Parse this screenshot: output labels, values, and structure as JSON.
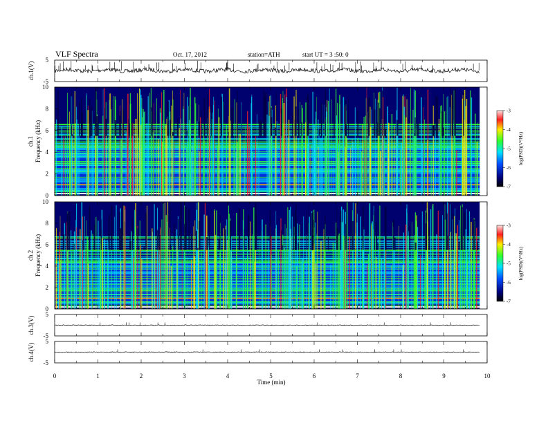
{
  "header": {
    "title": "VLF Spectra",
    "date": "Oct. 17, 2012",
    "station": "station=ATH",
    "start": "start UT = 3 :50: 0"
  },
  "chart_data": {
    "type": "heatmap",
    "xlabel": "Time (min)",
    "xlim": [
      0,
      10
    ],
    "xticks": [
      "0",
      "1",
      "2",
      "3",
      "4",
      "5",
      "6",
      "7",
      "8",
      "9",
      "10"
    ],
    "panels": [
      {
        "kind": "waveform",
        "ylabel": "ch.1(V)",
        "ylim": [
          -5,
          5
        ],
        "yticks": [
          "5",
          "-5"
        ],
        "level": 0.2
      },
      {
        "kind": "spectrogram",
        "ylabel": "ch.1 Frequency (kHz)",
        "ylim": [
          0,
          10
        ],
        "yticks": [
          "10",
          "8",
          "6",
          "4",
          "2",
          "0"
        ],
        "colorbar": {
          "label": "log(PSD)(V²/Hz)",
          "range": [
            -7,
            -3
          ],
          "ticks": [
            "-3",
            "-4",
            "-5",
            "-6",
            "-7"
          ]
        }
      },
      {
        "kind": "spectrogram",
        "ylabel": "ch.2 Frequency (kHz)",
        "ylim": [
          0,
          10
        ],
        "yticks": [
          "10",
          "8",
          "6",
          "4",
          "2",
          "0"
        ],
        "colorbar": {
          "label": "log(PSD)(V²/Hz)",
          "range": [
            -7,
            -3
          ],
          "ticks": [
            "-3",
            "-4",
            "-5",
            "-6",
            "-7"
          ]
        }
      },
      {
        "kind": "waveform",
        "ylabel": "ch.3(V)",
        "ylim": [
          -5,
          5
        ],
        "yticks": [
          "5",
          "-5"
        ],
        "level": 0.0
      },
      {
        "kind": "waveform",
        "ylabel": "ch.4(V)",
        "ylim": [
          -5,
          5
        ],
        "yticks": [
          "5",
          "-5"
        ],
        "level": 0.0
      }
    ],
    "data_end_min": 9.83,
    "colors": {
      "dark": "#00006e",
      "mid": "#0040ff",
      "cyan": "#00e0ff",
      "green": "#33ff33",
      "yellow": "#ffee00",
      "red": "#ff2020"
    }
  }
}
